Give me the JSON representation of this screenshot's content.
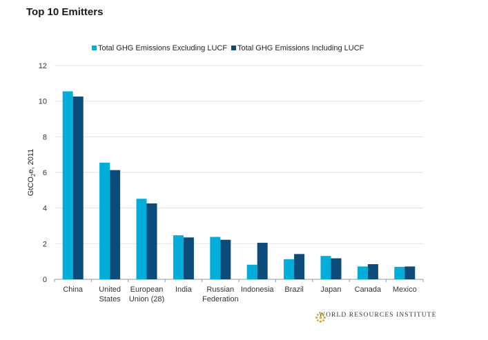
{
  "chart_data": {
    "type": "bar",
    "title": "Top 10 Emitters",
    "ylabel": "GtCO2e, 2011",
    "ylabel_parts": [
      "GtCO",
      "2",
      "e, 2011"
    ],
    "ylim": [
      0,
      12
    ],
    "yticks": [
      "0",
      "2",
      "4",
      "6",
      "8",
      "10",
      "12"
    ],
    "grid": true,
    "legend_position": "top",
    "categories": [
      [
        "China"
      ],
      [
        "United",
        "States"
      ],
      [
        "European",
        "Union (28)"
      ],
      [
        "India"
      ],
      [
        "Russian",
        "Federation"
      ],
      [
        "Indonesia"
      ],
      [
        "Brazil"
      ],
      [
        "Japan"
      ],
      [
        "Canada"
      ],
      [
        "Mexico"
      ]
    ],
    "series": [
      {
        "name": "Total GHG Emissions Excluding LUCF",
        "color": "#00aed9",
        "values": [
          10.55,
          6.55,
          4.52,
          2.47,
          2.38,
          0.82,
          1.13,
          1.31,
          0.72,
          0.7
        ]
      },
      {
        "name": "Total GHG Emissions Including LUCF",
        "color": "#0d4c7a",
        "values": [
          10.26,
          6.13,
          4.26,
          2.35,
          2.22,
          2.05,
          1.42,
          1.18,
          0.85,
          0.72
        ]
      }
    ]
  },
  "footer": {
    "brand": "WORLD RESOURCES INSTITUTE",
    "logo_icon": "wri-flower-logo"
  }
}
